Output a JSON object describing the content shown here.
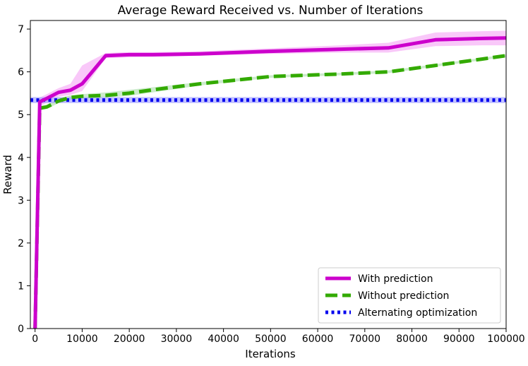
{
  "chart_data": {
    "type": "line",
    "title": "Average Reward Received vs. Number of Iterations",
    "xlabel": "Iterations",
    "ylabel": "Reward",
    "xlim": [
      -1000,
      100000
    ],
    "ylim": [
      0,
      7.2
    ],
    "xticks": [
      0,
      10000,
      20000,
      30000,
      40000,
      50000,
      60000,
      70000,
      80000,
      90000,
      100000
    ],
    "yticks": [
      0,
      1,
      2,
      3,
      4,
      5,
      6,
      7
    ],
    "grid": false,
    "legend_position": "lower-right",
    "series": [
      {
        "name": "With prediction",
        "color": "#cc00cc",
        "band_color": "#f5a3f5",
        "line_style": "solid",
        "x": [
          0,
          1000,
          2500,
          5000,
          7500,
          10000,
          15000,
          20000,
          25000,
          35000,
          50000,
          65000,
          75000,
          85000,
          95000,
          100000
        ],
        "y": [
          0,
          5.3,
          5.38,
          5.52,
          5.57,
          5.72,
          6.38,
          6.4,
          6.4,
          6.42,
          6.48,
          6.53,
          6.56,
          6.75,
          6.78,
          6.79
        ],
        "lower": [
          0,
          5.2,
          5.28,
          5.42,
          5.46,
          5.55,
          6.32,
          6.34,
          6.35,
          6.38,
          6.42,
          6.45,
          6.45,
          6.6,
          6.62,
          6.62
        ],
        "upper": [
          0,
          5.4,
          5.48,
          5.62,
          5.72,
          6.15,
          6.44,
          6.46,
          6.46,
          6.48,
          6.55,
          6.62,
          6.68,
          6.92,
          6.95,
          6.96
        ]
      },
      {
        "name": "Without prediction",
        "color": "#33aa00",
        "band_color": "#aaddaa",
        "line_style": "dashed",
        "x": [
          0,
          1000,
          2500,
          5000,
          7500,
          10000,
          15000,
          20000,
          25000,
          35000,
          50000,
          65000,
          75000,
          85000,
          95000,
          100000
        ],
        "y": [
          0,
          5.15,
          5.18,
          5.32,
          5.4,
          5.43,
          5.45,
          5.5,
          5.58,
          5.72,
          5.89,
          5.95,
          6.0,
          6.15,
          6.3,
          6.38
        ],
        "lower": [
          0,
          5.1,
          5.13,
          5.27,
          5.35,
          5.38,
          5.4,
          5.44,
          5.52,
          5.68,
          5.86,
          5.92,
          5.97,
          6.12,
          6.27,
          6.35
        ],
        "upper": [
          0,
          5.2,
          5.23,
          5.37,
          5.45,
          5.48,
          5.52,
          5.58,
          5.64,
          5.76,
          5.92,
          5.98,
          6.03,
          6.18,
          6.33,
          6.41
        ]
      },
      {
        "name": "Alternating optimization",
        "color": "#0000ee",
        "band_color": "#9999ff",
        "line_style": "dotted",
        "x": [
          -1000,
          100000
        ],
        "y": [
          5.34,
          5.34
        ],
        "lower": [
          5.27,
          5.27
        ],
        "upper": [
          5.41,
          5.41
        ]
      }
    ]
  }
}
